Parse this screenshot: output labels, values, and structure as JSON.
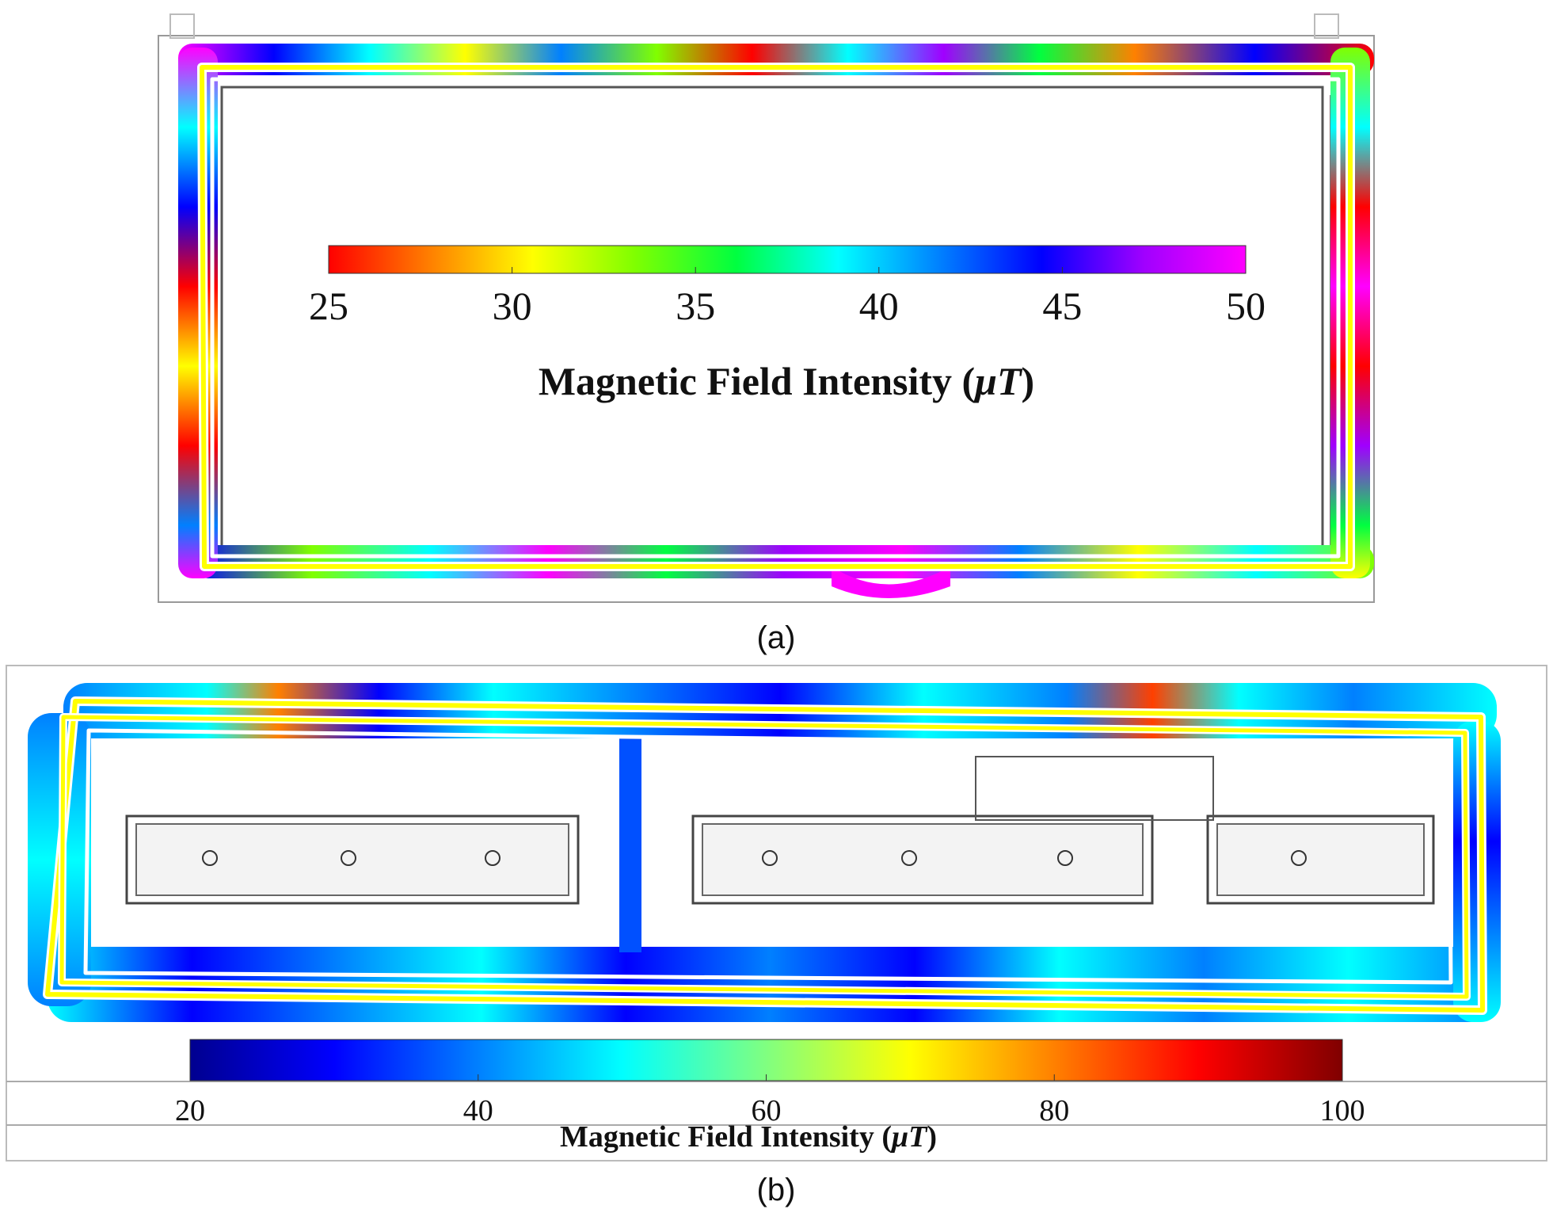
{
  "panels": [
    {
      "id": "a",
      "caption": "(a)",
      "colorbar": {
        "title_main": "Magnetic Field Intensity (",
        "title_unit": "μT",
        "title_close": ")",
        "ticks": [
          "25",
          "30",
          "35",
          "40",
          "45",
          "50"
        ],
        "range": [
          25,
          50
        ],
        "colors": [
          "#ff0000",
          "#ff8000",
          "#ffff00",
          "#80ff00",
          "#00ff40",
          "#00ffff",
          "#0080ff",
          "#0000ff",
          "#a000ff",
          "#ff00ff"
        ]
      }
    },
    {
      "id": "b",
      "caption": "(b)",
      "colorbar": {
        "title_main": "Magnetic Field Intensity (",
        "title_unit": "μT",
        "title_close": ")",
        "ticks": [
          "20",
          "40",
          "60",
          "80",
          "100"
        ],
        "range": [
          20,
          100
        ],
        "colors": [
          "#00008f",
          "#0000ff",
          "#0080ff",
          "#00ffff",
          "#80ff80",
          "#ffff00",
          "#ff8000",
          "#ff0000",
          "#800000"
        ]
      }
    }
  ],
  "colors": {
    "path_line": "#ffff00",
    "path_border": "#ffffff",
    "map_lines": "#555555"
  }
}
